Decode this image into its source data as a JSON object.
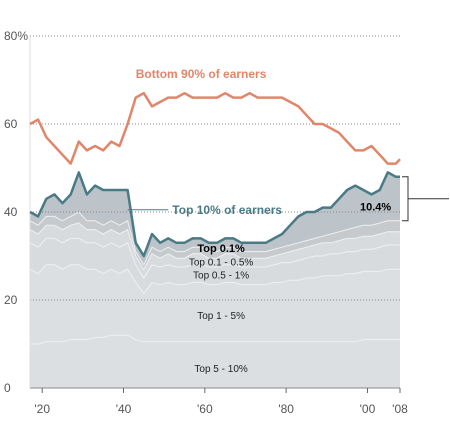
{
  "colors": {
    "bottom90": "#e0866a",
    "top10": "#4a7a85",
    "gap_fill": "#bcc4c9",
    "top01_fill": "#c6cacd",
    "band_fill": "#d8dbde",
    "band_fill_light": "#dcdfe2",
    "band_edge": "#eef0f2",
    "grid": "#888888"
  },
  "chart_data": {
    "type": "area",
    "ylim": [
      0,
      80
    ],
    "yticks": [
      0,
      20,
      40,
      60,
      80
    ],
    "ytick_labels": [
      "0",
      "20",
      "40",
      "60",
      "80%"
    ],
    "xlim": [
      1917,
      2008
    ],
    "xticks": [
      1920,
      1940,
      1960,
      1980,
      2000,
      2008
    ],
    "xtick_labels": [
      "'20",
      "'40",
      "'60",
      "'80",
      "'00",
      "'08"
    ],
    "x": [
      1917,
      1919,
      1921,
      1923,
      1925,
      1927,
      1929,
      1931,
      1933,
      1935,
      1937,
      1939,
      1941,
      1943,
      1945,
      1947,
      1949,
      1951,
      1953,
      1955,
      1957,
      1959,
      1961,
      1963,
      1965,
      1967,
      1969,
      1971,
      1973,
      1975,
      1977,
      1979,
      1981,
      1983,
      1985,
      1987,
      1989,
      1991,
      1993,
      1995,
      1997,
      1999,
      2001,
      2003,
      2005,
      2007,
      2008
    ],
    "series": [
      {
        "name": "Bottom 90% of earners",
        "values": [
          60,
          61,
          57,
          55,
          53,
          51,
          56,
          54,
          55,
          54,
          56,
          55,
          60,
          66,
          67,
          64,
          65,
          66,
          66,
          67,
          66,
          66,
          66,
          66,
          67,
          66,
          66,
          67,
          66,
          66,
          66,
          66,
          65,
          64,
          62,
          60,
          60,
          59,
          58,
          56,
          54,
          54,
          55,
          53,
          51,
          51,
          52
        ]
      },
      {
        "name": "Top 10% of earners",
        "values": [
          40,
          39,
          43,
          44,
          42,
          44,
          49,
          44,
          46,
          45,
          45,
          45,
          45,
          33,
          30,
          35,
          33,
          34,
          33,
          33,
          34,
          34,
          33,
          33,
          34,
          34,
          33,
          33,
          33,
          33,
          34,
          35,
          37,
          39,
          40,
          40,
          41,
          41,
          43,
          45,
          46,
          45,
          44,
          45,
          49,
          48,
          48
        ]
      },
      {
        "name": "Top 0.1%",
        "values": [
          38,
          37,
          39,
          39,
          38,
          39,
          40,
          38,
          38,
          37,
          38,
          37,
          38,
          31,
          28,
          32,
          31,
          32,
          31,
          31,
          32,
          32,
          31,
          31,
          32,
          32,
          31,
          31,
          31,
          31,
          31.5,
          32,
          32.5,
          33,
          33.5,
          34,
          34.5,
          35,
          35.5,
          36,
          36.5,
          37,
          37,
          37.5,
          38,
          38,
          38
        ]
      },
      {
        "name": "Top 0.1 - 0.5%",
        "values": [
          36,
          35,
          37,
          37,
          36,
          37,
          37.5,
          36,
          36,
          35,
          36,
          35,
          36,
          30,
          27,
          30.5,
          29.5,
          30.5,
          29.5,
          29.5,
          30.5,
          30.5,
          29.5,
          29.5,
          30.5,
          30.5,
          29.5,
          29.5,
          29.5,
          29.5,
          30,
          30.5,
          31,
          31.5,
          32,
          32.5,
          33,
          33,
          33.5,
          34,
          34,
          34.5,
          34.5,
          35,
          35.5,
          35.5,
          35.5
        ]
      },
      {
        "name": "Top 0.5 - 1%",
        "values": [
          33,
          32,
          34,
          34,
          33,
          34,
          34,
          33,
          33,
          32,
          33,
          32,
          33,
          28,
          25,
          28,
          27.5,
          28,
          27.5,
          27.5,
          28,
          28,
          27.5,
          27.5,
          28,
          28,
          27.5,
          27.5,
          27.5,
          27.5,
          28,
          28.5,
          28.5,
          29,
          29.5,
          30,
          30,
          30.5,
          30.5,
          31,
          31,
          31.5,
          31.5,
          32,
          32.5,
          32.5,
          32.5
        ]
      },
      {
        "name": "Top 1 - 5%",
        "values": [
          27,
          26,
          28,
          28,
          27,
          28,
          28,
          27,
          27,
          26,
          27,
          26,
          27,
          24,
          21.5,
          24,
          23.5,
          24,
          23.5,
          23.5,
          24,
          24,
          23.5,
          23.5,
          24,
          24,
          23.5,
          23.5,
          23.5,
          23.5,
          24,
          24,
          24.5,
          24.5,
          25,
          25,
          25.5,
          25.5,
          25.5,
          26,
          26,
          26.5,
          26.5,
          26.5,
          27,
          27,
          27
        ]
      },
      {
        "name": "Top 5 - 10%",
        "values": [
          10,
          10,
          10.5,
          10.5,
          10.5,
          11,
          11,
          11,
          11.5,
          11.5,
          12,
          12,
          12,
          11,
          10.5,
          10.5,
          10.5,
          10.5,
          10.5,
          10.5,
          10.5,
          10.5,
          10.5,
          10.5,
          10.5,
          10.5,
          10.5,
          10.5,
          10.5,
          10.5,
          10.5,
          10.5,
          10.5,
          10.5,
          10.5,
          10.5,
          10.5,
          10.5,
          10.5,
          10.5,
          10.5,
          11,
          11,
          11,
          11,
          11,
          11
        ]
      }
    ],
    "labels": {
      "bottom90": "Bottom 90% of earners",
      "top10": "Top 10% of earners",
      "top01": "Top 0.1%",
      "top01_05": "Top 0.1 - 0.5%",
      "top05_1": "Top 0.5 - 1%",
      "top1_5": "Top 1 - 5%",
      "top5_10": "Top 5 - 10%",
      "gap_pct": "10.4%"
    }
  }
}
